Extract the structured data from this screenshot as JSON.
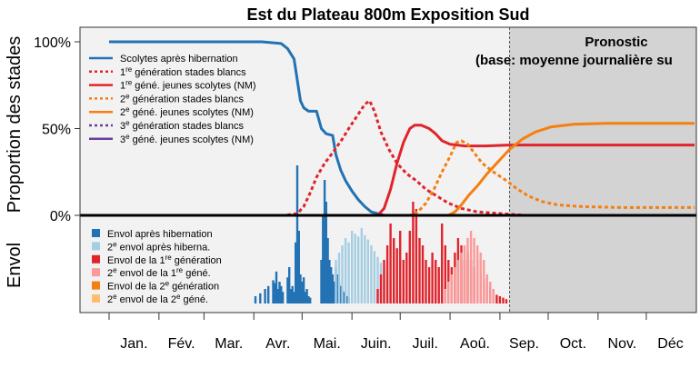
{
  "chart_data": {
    "type": "line",
    "title": "Est du Plateau 800m Exposition Sud",
    "ylabel_top": "Proportion des stades",
    "ylabel_bottom": "Envol",
    "forecast_label": [
      "Pronostic",
      "(base: moyenne journalière su"
    ],
    "yticks": [
      "100%",
      "50%",
      "0%"
    ],
    "ylim": [
      0,
      1
    ],
    "xlim_day": [
      1,
      365
    ],
    "forecast_start_day": 250,
    "months": [
      {
        "label": "Jan.",
        "start": 1
      },
      {
        "label": "Fév.",
        "start": 32
      },
      {
        "label": "Mar.",
        "start": 60
      },
      {
        "label": "Avr.",
        "start": 91
      },
      {
        "label": "Mai.",
        "start": 121
      },
      {
        "label": "Juin.",
        "start": 152
      },
      {
        "label": "Juil.",
        "start": 182
      },
      {
        "label": "Aoû.",
        "start": 213
      },
      {
        "label": "Sep.",
        "start": 244
      },
      {
        "label": "Oct.",
        "start": 274
      },
      {
        "label": "Nov.",
        "start": 305
      },
      {
        "label": "Déc",
        "start": 335
      }
    ],
    "legend_lines": [
      {
        "pre": "Scolytes après hibernation",
        "sup": "",
        "post": "",
        "color": "#2272b4",
        "dash": false
      },
      {
        "pre": "1",
        "sup": "re",
        "post": " génération stades blancs",
        "color": "#e0242c",
        "dash": true
      },
      {
        "pre": "1",
        "sup": "re",
        "post": " géné. jeunes scolytes (NM)",
        "color": "#e0242c",
        "dash": false
      },
      {
        "pre": "2",
        "sup": "e",
        "post": " génération stades blancs",
        "color": "#f57f10",
        "dash": true
      },
      {
        "pre": "2",
        "sup": "e",
        "post": " géné. jeunes scolytes (NM)",
        "color": "#f57f10",
        "dash": false
      },
      {
        "pre": "3",
        "sup": "e",
        "post": " génération stades blancs",
        "color": "#6a3d9a",
        "dash": true
      },
      {
        "pre": "3",
        "sup": "e",
        "post": " géné. jeunes scolytes (NM)",
        "color": "#6a3d9a",
        "dash": false
      }
    ],
    "legend_bars": [
      {
        "pre": "Envol après hibernation",
        "sup": "",
        "post": "",
        "color": "#2272b4"
      },
      {
        "pre": "2",
        "sup": "e",
        "post": " envol après hiberna.",
        "color": "#a6cee3"
      },
      {
        "pre": "Envol de la 1",
        "sup": "re",
        "post": " génération",
        "color": "#e0242c"
      },
      {
        "pre": "2",
        "sup": "e",
        "post": " envol de la 1",
        "sup2": "re",
        "post2": " géné.",
        "color": "#fb9a99"
      },
      {
        "pre": "Envol de la 2",
        "sup": "e",
        "post": " génération",
        "color": "#f57f10"
      },
      {
        "pre": "2",
        "sup": "e",
        "post": " envol de la 2",
        "sup2": "e",
        "post2": " géné.",
        "color": "#fdbf6f"
      }
    ],
    "series": [
      {
        "name": "Scolytes après hibernation",
        "color": "#2272b4",
        "dash": false,
        "points": [
          [
            1,
            1
          ],
          [
            96,
            1
          ],
          [
            108,
            0.99
          ],
          [
            112,
            0.96
          ],
          [
            116,
            0.9
          ],
          [
            118,
            0.78
          ],
          [
            120,
            0.66
          ],
          [
            122,
            0.62
          ],
          [
            125,
            0.6
          ],
          [
            130,
            0.6
          ],
          [
            133,
            0.5
          ],
          [
            136,
            0.47
          ],
          [
            140,
            0.46
          ],
          [
            142,
            0.35
          ],
          [
            145,
            0.26
          ],
          [
            148,
            0.2
          ],
          [
            152,
            0.14
          ],
          [
            156,
            0.09
          ],
          [
            160,
            0.05
          ],
          [
            164,
            0.02
          ],
          [
            168,
            0.01
          ],
          [
            172,
            0
          ]
        ]
      },
      {
        "name": "1re génération stades blancs",
        "color": "#e0242c",
        "dash": true,
        "points": [
          [
            1,
            0
          ],
          [
            110,
            0
          ],
          [
            118,
            0.01
          ],
          [
            122,
            0.05
          ],
          [
            126,
            0.13
          ],
          [
            130,
            0.22
          ],
          [
            135,
            0.3
          ],
          [
            140,
            0.36
          ],
          [
            146,
            0.44
          ],
          [
            150,
            0.5
          ],
          [
            155,
            0.57
          ],
          [
            160,
            0.64
          ],
          [
            163,
            0.66
          ],
          [
            166,
            0.6
          ],
          [
            170,
            0.48
          ],
          [
            175,
            0.38
          ],
          [
            180,
            0.3
          ],
          [
            186,
            0.24
          ],
          [
            192,
            0.2
          ],
          [
            198,
            0.15
          ],
          [
            205,
            0.11
          ],
          [
            212,
            0.07
          ],
          [
            220,
            0.04
          ],
          [
            230,
            0.02
          ],
          [
            245,
            0.01
          ],
          [
            260,
            0
          ]
        ]
      },
      {
        "name": "1re géné. jeunes scolytes (NM)",
        "color": "#e0242c",
        "dash": false,
        "points": [
          [
            1,
            0
          ],
          [
            168,
            0
          ],
          [
            172,
            0.04
          ],
          [
            176,
            0.15
          ],
          [
            180,
            0.3
          ],
          [
            184,
            0.42
          ],
          [
            188,
            0.5
          ],
          [
            191,
            0.52
          ],
          [
            195,
            0.52
          ],
          [
            200,
            0.5
          ],
          [
            204,
            0.47
          ],
          [
            208,
            0.43
          ],
          [
            213,
            0.41
          ],
          [
            222,
            0.4
          ],
          [
            235,
            0.4
          ],
          [
            250,
            0.405
          ],
          [
            365,
            0.405
          ]
        ]
      },
      {
        "name": "2e génération stades blancs",
        "color": "#f57f10",
        "dash": true,
        "points": [
          [
            1,
            0
          ],
          [
            188,
            0
          ],
          [
            193,
            0.02
          ],
          [
            198,
            0.07
          ],
          [
            203,
            0.15
          ],
          [
            208,
            0.25
          ],
          [
            213,
            0.34
          ],
          [
            217,
            0.42
          ],
          [
            220,
            0.43
          ],
          [
            224,
            0.41
          ],
          [
            228,
            0.36
          ],
          [
            233,
            0.3
          ],
          [
            240,
            0.25
          ],
          [
            248,
            0.2
          ],
          [
            255,
            0.15
          ],
          [
            262,
            0.11
          ],
          [
            270,
            0.08
          ],
          [
            280,
            0.06
          ],
          [
            295,
            0.05
          ],
          [
            320,
            0.045
          ],
          [
            365,
            0.045
          ]
        ]
      },
      {
        "name": "2e géné. jeunes scolytes (NM)",
        "color": "#f57f10",
        "dash": false,
        "points": [
          [
            1,
            0
          ],
          [
            212,
            0
          ],
          [
            216,
            0.02
          ],
          [
            220,
            0.06
          ],
          [
            225,
            0.12
          ],
          [
            230,
            0.17
          ],
          [
            236,
            0.24
          ],
          [
            242,
            0.3
          ],
          [
            250,
            0.38
          ],
          [
            258,
            0.44
          ],
          [
            266,
            0.48
          ],
          [
            276,
            0.51
          ],
          [
            290,
            0.525
          ],
          [
            310,
            0.53
          ],
          [
            365,
            0.53
          ]
        ]
      }
    ],
    "bars": {
      "envol_hibernation": {
        "color": "#2272b4",
        "days": [
          92,
          95,
          98,
          100,
          103,
          104,
          105,
          106,
          107,
          108,
          109,
          112,
          113,
          114,
          115,
          116,
          117,
          118,
          119,
          120,
          121,
          122,
          123,
          124,
          125,
          126,
          133,
          134,
          135,
          136,
          137,
          138,
          139,
          140,
          141,
          142,
          143,
          144,
          145,
          146,
          147,
          148,
          149,
          150
        ],
        "values": [
          0.05,
          0.07,
          0.1,
          0.12,
          0.16,
          0.14,
          0.22,
          0.1,
          0.15,
          0.12,
          0.08,
          0.18,
          0.25,
          0.1,
          0.12,
          0.08,
          0.42,
          0.95,
          0.5,
          0.2,
          0.15,
          0.18,
          0.08,
          0.1,
          0.05,
          0.04,
          0.3,
          0.6,
          0.85,
          0.7,
          0.45,
          0.3,
          0.25,
          0.2,
          0.15,
          0.25,
          0.2,
          0.15,
          0.12,
          0.1,
          0.08,
          0.06,
          0.05,
          0.04
        ]
      },
      "envol2_hibernation": {
        "color": "#a6cee3",
        "days": [
          142,
          144,
          146,
          148,
          150,
          152,
          154,
          156,
          158,
          160,
          162,
          164,
          166,
          168,
          170,
          172,
          174,
          176,
          178,
          180,
          182,
          184
        ],
        "values": [
          0.3,
          0.35,
          0.4,
          0.45,
          0.42,
          0.5,
          0.48,
          0.46,
          0.52,
          0.47,
          0.44,
          0.4,
          0.36,
          0.32,
          0.28,
          0.24,
          0.2,
          0.16,
          0.12,
          0.1,
          0.06,
          0.03
        ]
      },
      "envol_gen1": {
        "color": "#e0242c",
        "days": [
          168,
          170,
          172,
          174,
          176,
          178,
          180,
          182,
          184,
          186,
          188,
          190,
          192,
          194,
          196,
          198,
          200,
          202,
          204,
          206,
          208,
          210,
          212,
          214,
          216,
          218,
          220,
          222,
          224,
          226,
          228,
          230,
          232,
          234,
          236,
          238,
          240,
          242,
          244,
          246,
          248
        ],
        "values": [
          0.1,
          0.2,
          0.3,
          0.4,
          0.55,
          0.45,
          0.38,
          0.5,
          0.3,
          0.35,
          0.5,
          0.7,
          0.65,
          0.45,
          0.4,
          0.3,
          0.25,
          0.35,
          0.3,
          0.25,
          0.55,
          0.4,
          0.3,
          0.25,
          0.35,
          0.45,
          0.4,
          0.3,
          0.35,
          0.3,
          0.25,
          0.3,
          0.2,
          0.15,
          0.18,
          0.12,
          0.1,
          0.06,
          0.05,
          0.04,
          0.03
        ]
      },
      "envol2_gen1": {
        "color": "#fb9a99",
        "days": [
          210,
          212,
          214,
          216,
          218,
          220,
          222,
          224,
          226,
          228,
          230,
          232,
          234,
          236,
          238,
          240
        ],
        "values": [
          0.1,
          0.15,
          0.2,
          0.25,
          0.3,
          0.35,
          0.4,
          0.45,
          0.5,
          0.45,
          0.4,
          0.35,
          0.3,
          0.2,
          0.15,
          0.1
        ]
      }
    }
  }
}
